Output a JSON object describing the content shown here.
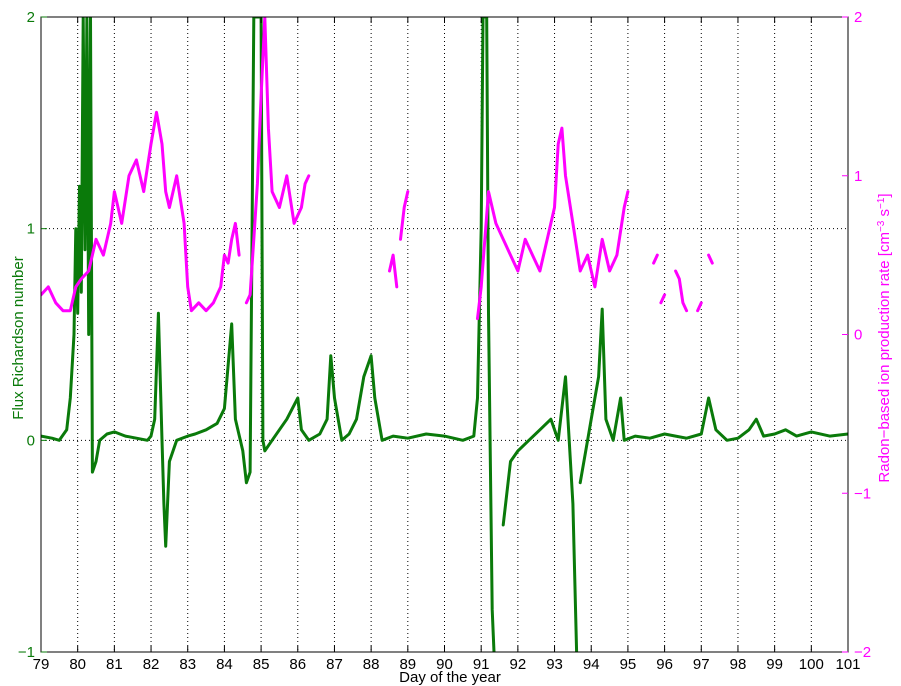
{
  "chart_data": {
    "type": "line",
    "xlabel": "Day of the year",
    "ylabel_left": "Flux Richardson number",
    "ylabel_right_parts": [
      "Radon−based ion production rate [cm",
      "−3",
      " s",
      "−1",
      "]"
    ],
    "xlim": [
      79,
      101
    ],
    "xticks": [
      79,
      80,
      81,
      82,
      83,
      84,
      85,
      86,
      87,
      88,
      89,
      90,
      91,
      92,
      93,
      94,
      95,
      96,
      97,
      98,
      99,
      100,
      101
    ],
    "ylim_left": [
      -1,
      2
    ],
    "yticks_left": [
      -1,
      0,
      1,
      2
    ],
    "ylim_right": [
      -2,
      2
    ],
    "yticks_right": [
      -2,
      -1,
      0,
      1,
      2
    ],
    "grid": "dotted",
    "colors": {
      "left": "#0a7a0a",
      "right": "#ff00ff"
    },
    "series": [
      {
        "axis": "left",
        "segments": [
          [
            [
              79.0,
              0.02
            ],
            [
              79.3,
              0.01
            ],
            [
              79.5,
              0.0
            ],
            [
              79.7,
              0.05
            ],
            [
              79.8,
              0.2
            ],
            [
              79.9,
              0.5
            ],
            [
              79.95,
              1.0
            ],
            [
              80.0,
              0.6
            ],
            [
              80.05,
              1.2
            ],
            [
              80.1,
              0.7
            ],
            [
              80.15,
              2.0
            ],
            [
              80.2,
              0.9
            ],
            [
              80.25,
              2.0
            ],
            [
              80.3,
              0.5
            ],
            [
              80.35,
              2.0
            ],
            [
              80.4,
              -0.15
            ],
            [
              80.5,
              -0.1
            ],
            [
              80.6,
              0.0
            ],
            [
              80.8,
              0.03
            ],
            [
              81.0,
              0.04
            ],
            [
              81.3,
              0.02
            ],
            [
              81.6,
              0.01
            ],
            [
              81.9,
              0.0
            ],
            [
              82.0,
              0.02
            ],
            [
              82.1,
              0.1
            ],
            [
              82.2,
              0.6
            ],
            [
              82.3,
              0.0
            ],
            [
              82.35,
              -0.3
            ],
            [
              82.4,
              -0.5
            ],
            [
              82.5,
              -0.1
            ],
            [
              82.7,
              0.0
            ],
            [
              83.0,
              0.02
            ],
            [
              83.2,
              0.03
            ],
            [
              83.5,
              0.05
            ],
            [
              83.8,
              0.08
            ],
            [
              84.0,
              0.15
            ],
            [
              84.2,
              0.55
            ],
            [
              84.3,
              0.1
            ],
            [
              84.5,
              -0.05
            ],
            [
              84.6,
              -0.2
            ],
            [
              84.7,
              -0.15
            ],
            [
              84.8,
              2.0
            ],
            [
              85.0,
              2.0
            ],
            [
              85.05,
              0.0
            ],
            [
              85.1,
              -0.05
            ],
            [
              85.3,
              0.0
            ],
            [
              85.5,
              0.05
            ],
            [
              85.7,
              0.1
            ],
            [
              86.0,
              0.2
            ],
            [
              86.1,
              0.05
            ],
            [
              86.3,
              0.0
            ],
            [
              86.6,
              0.03
            ],
            [
              86.8,
              0.1
            ],
            [
              86.9,
              0.4
            ],
            [
              87.0,
              0.2
            ],
            [
              87.2,
              0.0
            ],
            [
              87.4,
              0.03
            ],
            [
              87.6,
              0.1
            ],
            [
              87.8,
              0.3
            ],
            [
              88.0,
              0.4
            ],
            [
              88.1,
              0.2
            ],
            [
              88.3,
              0.0
            ],
            [
              88.6,
              0.02
            ],
            [
              89.0,
              0.01
            ],
            [
              89.5,
              0.03
            ],
            [
              90.0,
              0.02
            ],
            [
              90.5,
              0.0
            ],
            [
              90.8,
              0.02
            ],
            [
              90.9,
              0.2
            ],
            [
              91.0,
              1.0
            ],
            [
              91.05,
              2.0
            ],
            [
              91.15,
              2.0
            ],
            [
              91.2,
              0.6
            ],
            [
              91.3,
              -0.8
            ],
            [
              91.35,
              -1.0
            ]
          ],
          [
            [
              91.6,
              -0.4
            ],
            [
              91.8,
              -0.1
            ],
            [
              92.0,
              -0.05
            ],
            [
              92.3,
              0.0
            ],
            [
              92.6,
              0.05
            ],
            [
              92.9,
              0.1
            ],
            [
              93.1,
              0.0
            ],
            [
              93.3,
              0.3
            ],
            [
              93.5,
              -0.3
            ],
            [
              93.6,
              -1.0
            ]
          ],
          [
            [
              93.7,
              -0.2
            ],
            [
              93.9,
              0.0
            ],
            [
              94.0,
              0.1
            ],
            [
              94.2,
              0.3
            ],
            [
              94.3,
              0.62
            ],
            [
              94.4,
              0.1
            ],
            [
              94.6,
              0.0
            ],
            [
              94.8,
              0.2
            ],
            [
              94.9,
              0.0
            ],
            [
              95.2,
              0.02
            ],
            [
              95.6,
              0.01
            ],
            [
              96.0,
              0.03
            ],
            [
              96.3,
              0.02
            ],
            [
              96.6,
              0.01
            ],
            [
              97.0,
              0.03
            ],
            [
              97.2,
              0.2
            ],
            [
              97.4,
              0.05
            ],
            [
              97.7,
              0.0
            ],
            [
              98.0,
              0.01
            ],
            [
              98.3,
              0.05
            ],
            [
              98.5,
              0.1
            ],
            [
              98.7,
              0.02
            ],
            [
              99.0,
              0.03
            ],
            [
              99.3,
              0.05
            ],
            [
              99.6,
              0.02
            ],
            [
              100.0,
              0.04
            ],
            [
              100.5,
              0.02
            ],
            [
              101.0,
              0.03
            ]
          ]
        ]
      },
      {
        "axis": "right",
        "segments": [
          [
            [
              79.0,
              0.25
            ],
            [
              79.2,
              0.3
            ],
            [
              79.4,
              0.2
            ],
            [
              79.6,
              0.15
            ],
            [
              79.8,
              0.15
            ],
            [
              79.95,
              0.3
            ],
            [
              80.1,
              0.35
            ],
            [
              80.3,
              0.4
            ],
            [
              80.5,
              0.6
            ],
            [
              80.7,
              0.5
            ],
            [
              80.9,
              0.7
            ],
            [
              81.0,
              0.9
            ],
            [
              81.2,
              0.7
            ],
            [
              81.4,
              1.0
            ],
            [
              81.6,
              1.1
            ],
            [
              81.8,
              0.9
            ],
            [
              82.0,
              1.2
            ],
            [
              82.15,
              1.4
            ],
            [
              82.3,
              1.2
            ],
            [
              82.4,
              0.9
            ],
            [
              82.5,
              0.8
            ],
            [
              82.7,
              1.0
            ],
            [
              82.9,
              0.7
            ],
            [
              83.0,
              0.3
            ],
            [
              83.1,
              0.15
            ],
            [
              83.3,
              0.2
            ],
            [
              83.5,
              0.15
            ],
            [
              83.7,
              0.2
            ],
            [
              83.9,
              0.3
            ],
            [
              84.0,
              0.5
            ],
            [
              84.1,
              0.45
            ],
            [
              84.2,
              0.6
            ],
            [
              84.3,
              0.7
            ],
            [
              84.4,
              0.5
            ]
          ],
          [
            [
              84.6,
              0.2
            ],
            [
              84.7,
              0.25
            ],
            [
              84.8,
              0.6
            ],
            [
              84.9,
              0.95
            ],
            [
              85.0,
              1.5
            ],
            [
              85.1,
              2.0
            ],
            [
              85.2,
              1.3
            ],
            [
              85.3,
              0.9
            ],
            [
              85.5,
              0.8
            ],
            [
              85.7,
              1.0
            ],
            [
              85.9,
              0.7
            ],
            [
              86.1,
              0.8
            ],
            [
              86.2,
              0.95
            ],
            [
              86.3,
              1.0
            ]
          ],
          [
            [
              88.5,
              0.4
            ],
            [
              88.6,
              0.5
            ],
            [
              88.7,
              0.3
            ]
          ],
          [
            [
              88.8,
              0.6
            ],
            [
              88.9,
              0.8
            ],
            [
              89.0,
              0.9
            ]
          ],
          [
            [
              90.9,
              0.1
            ],
            [
              91.0,
              0.3
            ],
            [
              91.2,
              0.9
            ],
            [
              91.4,
              0.7
            ],
            [
              91.6,
              0.6
            ],
            [
              91.8,
              0.5
            ],
            [
              92.0,
              0.4
            ],
            [
              92.2,
              0.6
            ],
            [
              92.4,
              0.5
            ],
            [
              92.6,
              0.4
            ],
            [
              92.8,
              0.6
            ],
            [
              93.0,
              0.8
            ],
            [
              93.1,
              1.2
            ],
            [
              93.2,
              1.3
            ],
            [
              93.3,
              1.0
            ],
            [
              93.5,
              0.7
            ],
            [
              93.7,
              0.4
            ],
            [
              93.9,
              0.5
            ],
            [
              94.1,
              0.3
            ],
            [
              94.3,
              0.6
            ],
            [
              94.5,
              0.4
            ],
            [
              94.7,
              0.5
            ],
            [
              94.9,
              0.8
            ],
            [
              95.0,
              0.9
            ]
          ],
          [
            [
              95.7,
              0.45
            ],
            [
              95.8,
              0.5
            ]
          ],
          [
            [
              95.9,
              0.2
            ],
            [
              96.0,
              0.25
            ]
          ],
          [
            [
              96.3,
              0.4
            ],
            [
              96.4,
              0.35
            ],
            [
              96.5,
              0.2
            ],
            [
              96.6,
              0.15
            ]
          ],
          [
            [
              96.9,
              0.15
            ],
            [
              97.0,
              0.2
            ]
          ],
          [
            [
              97.2,
              0.5
            ],
            [
              97.3,
              0.45
            ]
          ]
        ]
      }
    ]
  }
}
